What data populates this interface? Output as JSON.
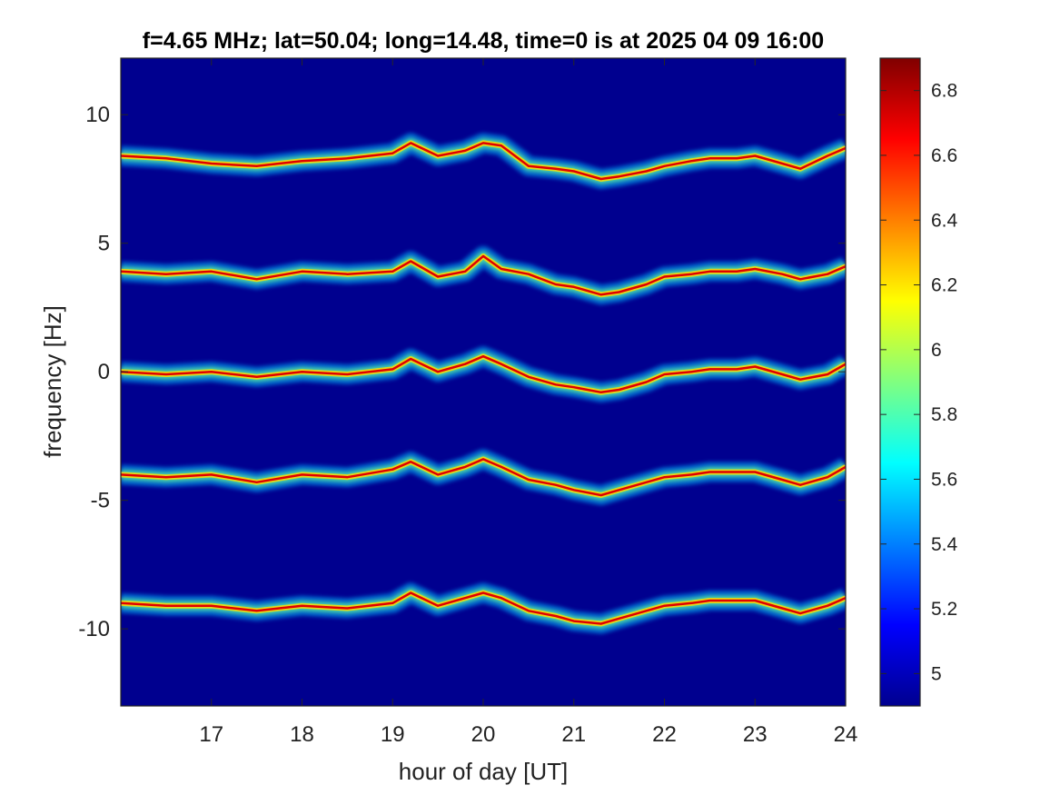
{
  "chart_data": {
    "type": "heatmap",
    "title": "f=4.65 MHz;  lat=50.04; long=14.48, time=0 is at 2025 04 09 16:00",
    "xlabel": "hour of day [UT]",
    "ylabel": "frequency [Hz]",
    "xlim": [
      16,
      24
    ],
    "ylim": [
      -13,
      12.2
    ],
    "xticks": [
      17,
      18,
      19,
      20,
      21,
      22,
      23,
      24
    ],
    "xtick_labels": [
      "17",
      "18",
      "19",
      "20",
      "21",
      "22",
      "23",
      "24"
    ],
    "yticks": [
      10,
      5,
      0,
      -5,
      -10
    ],
    "ytick_labels": [
      "10",
      "5",
      "0",
      "-5",
      "-10"
    ],
    "colorbar": {
      "range": [
        4.9,
        6.9
      ],
      "ticks": [
        6.8,
        6.6,
        6.4,
        6.2,
        6,
        5.8,
        5.6,
        5.4,
        5.2,
        5
      ],
      "tick_labels": [
        "6.8",
        "6.6",
        "6.4",
        "6.2",
        "6",
        "5.8",
        "5.6",
        "5.4",
        "5.2",
        "5"
      ],
      "colormap": "jet"
    },
    "background_color": "#00008f",
    "traces": [
      {
        "name": "",
        "x": [
          16.0,
          16.5,
          17.0,
          17.5,
          18.0,
          18.5,
          19.0,
          19.2,
          19.5,
          19.8,
          20.0,
          20.2,
          20.5,
          20.8,
          21.0,
          21.3,
          21.5,
          21.8,
          22.0,
          22.3,
          22.5,
          22.8,
          23.0,
          23.3,
          23.5,
          23.8,
          24.0
        ],
        "y": [
          8.4,
          8.3,
          8.1,
          8.0,
          8.2,
          8.3,
          8.5,
          8.9,
          8.4,
          8.6,
          8.9,
          8.8,
          8.0,
          7.9,
          7.8,
          7.5,
          7.6,
          7.8,
          8.0,
          8.2,
          8.3,
          8.3,
          8.4,
          8.1,
          7.9,
          8.4,
          8.7
        ]
      },
      {
        "name": "",
        "x": [
          16.0,
          16.5,
          17.0,
          17.5,
          18.0,
          18.5,
          19.0,
          19.2,
          19.5,
          19.8,
          20.0,
          20.2,
          20.5,
          20.8,
          21.0,
          21.3,
          21.5,
          21.8,
          22.0,
          22.3,
          22.5,
          22.8,
          23.0,
          23.3,
          23.5,
          23.8,
          24.0
        ],
        "y": [
          3.9,
          3.8,
          3.9,
          3.6,
          3.9,
          3.8,
          3.9,
          4.3,
          3.7,
          3.9,
          4.5,
          4.0,
          3.8,
          3.4,
          3.3,
          3.0,
          3.1,
          3.4,
          3.7,
          3.8,
          3.9,
          3.9,
          4.0,
          3.8,
          3.6,
          3.8,
          4.1
        ]
      },
      {
        "name": "",
        "x": [
          16.0,
          16.5,
          17.0,
          17.5,
          18.0,
          18.5,
          19.0,
          19.2,
          19.5,
          19.8,
          20.0,
          20.2,
          20.5,
          20.8,
          21.0,
          21.3,
          21.5,
          21.8,
          22.0,
          22.3,
          22.5,
          22.8,
          23.0,
          23.3,
          23.5,
          23.8,
          24.0
        ],
        "y": [
          0.0,
          -0.1,
          0.0,
          -0.2,
          0.0,
          -0.1,
          0.1,
          0.5,
          0.0,
          0.3,
          0.6,
          0.3,
          -0.2,
          -0.5,
          -0.6,
          -0.8,
          -0.7,
          -0.4,
          -0.1,
          0.0,
          0.1,
          0.1,
          0.2,
          -0.1,
          -0.3,
          -0.1,
          0.3
        ]
      },
      {
        "name": "",
        "x": [
          16.0,
          16.5,
          17.0,
          17.5,
          18.0,
          18.5,
          19.0,
          19.2,
          19.5,
          19.8,
          20.0,
          20.2,
          20.5,
          20.8,
          21.0,
          21.3,
          21.5,
          21.8,
          22.0,
          22.3,
          22.5,
          22.8,
          23.0,
          23.3,
          23.5,
          23.8,
          24.0
        ],
        "y": [
          -4.0,
          -4.1,
          -4.0,
          -4.3,
          -4.0,
          -4.1,
          -3.8,
          -3.5,
          -4.0,
          -3.7,
          -3.4,
          -3.7,
          -4.2,
          -4.4,
          -4.6,
          -4.8,
          -4.6,
          -4.3,
          -4.1,
          -4.0,
          -3.9,
          -3.9,
          -3.9,
          -4.2,
          -4.4,
          -4.1,
          -3.7
        ]
      },
      {
        "name": "",
        "x": [
          16.0,
          16.5,
          17.0,
          17.5,
          18.0,
          18.5,
          19.0,
          19.2,
          19.5,
          19.8,
          20.0,
          20.2,
          20.5,
          20.8,
          21.0,
          21.3,
          21.5,
          21.8,
          22.0,
          22.3,
          22.5,
          22.8,
          23.0,
          23.3,
          23.5,
          23.8,
          24.0
        ],
        "y": [
          -9.0,
          -9.1,
          -9.1,
          -9.3,
          -9.1,
          -9.2,
          -9.0,
          -8.6,
          -9.1,
          -8.8,
          -8.6,
          -8.8,
          -9.3,
          -9.5,
          -9.7,
          -9.8,
          -9.6,
          -9.3,
          -9.1,
          -9.0,
          -8.9,
          -8.9,
          -8.9,
          -9.2,
          -9.4,
          -9.1,
          -8.8
        ]
      }
    ]
  }
}
